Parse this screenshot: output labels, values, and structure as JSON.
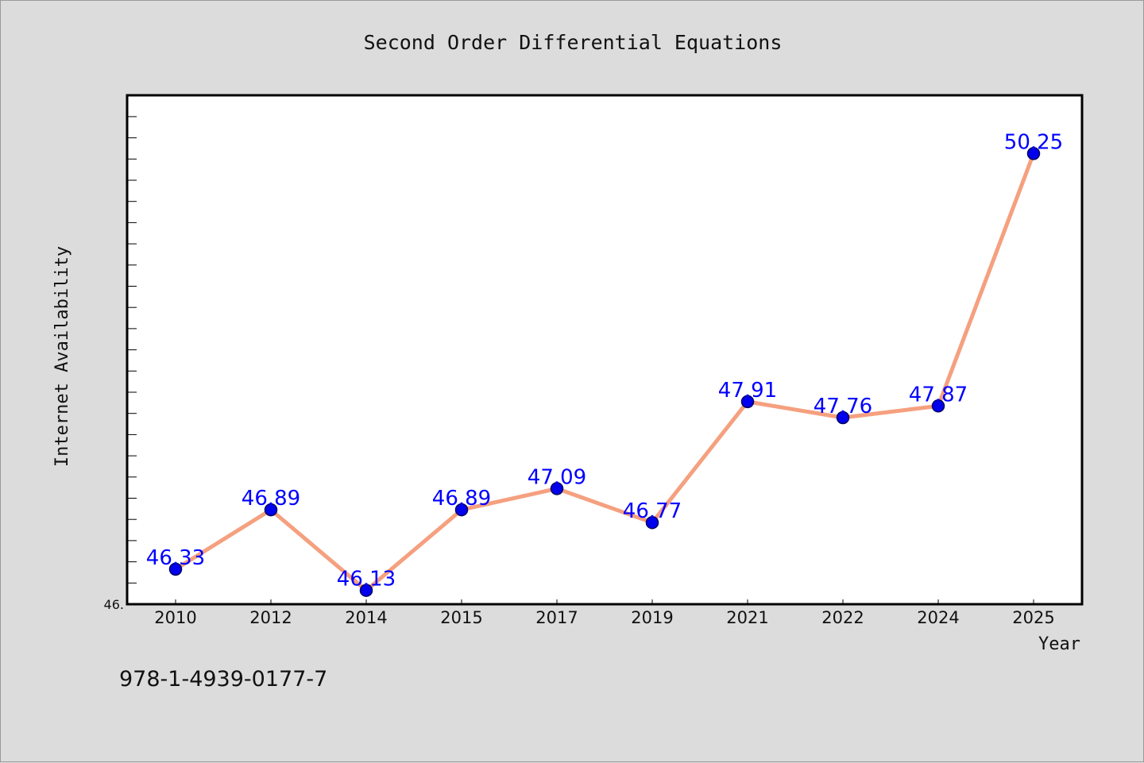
{
  "chart_data": {
    "type": "line",
    "title": "Second Order Differential Equations",
    "xlabel": "Year",
    "ylabel": "Internet Availability",
    "categories": [
      "2010",
      "2012",
      "2014",
      "2015",
      "2017",
      "2019",
      "2021",
      "2022",
      "2024",
      "2025"
    ],
    "series": [
      {
        "values": [
          46.33,
          46.89,
          46.13,
          46.89,
          47.09,
          46.77,
          47.91,
          47.76,
          47.87,
          50.25
        ],
        "labels": [
          "46.33",
          "46.89",
          "46.13",
          "46.89",
          "47.09",
          "46.77",
          "47.91",
          "47.76",
          "47.87",
          "50.25"
        ]
      }
    ],
    "ytick_label": "46.",
    "ylim": [
      46.0,
      50.8
    ],
    "grid": false,
    "legend": "none",
    "colors": {
      "line": "#f5a07f",
      "marker": "#0000ee",
      "data_label": "#0000ff",
      "background": "#dcdcdc",
      "plot_area": "#ffffff"
    }
  },
  "footer": {
    "isbn": "978-1-4939-0177-7"
  }
}
